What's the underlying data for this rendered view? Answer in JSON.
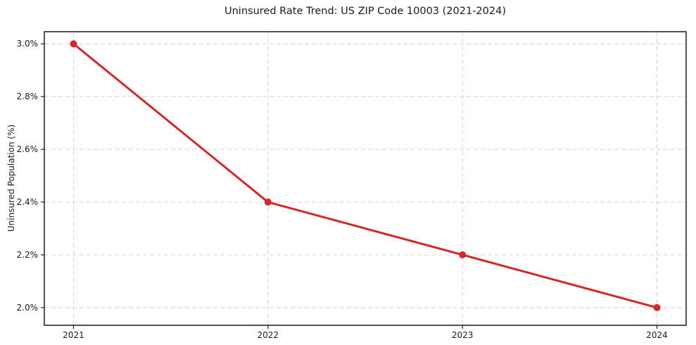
{
  "chart_data": {
    "type": "line",
    "title": "Uninsured Rate Trend: US ZIP Code 10003 (2021-2024)",
    "xlabel": "",
    "ylabel": "Uninsured Population (%)",
    "x": [
      2021,
      2022,
      2023,
      2024
    ],
    "x_tick_labels": [
      "2021",
      "2022",
      "2023",
      "2024"
    ],
    "series": [
      {
        "values": [
          3.0,
          2.4,
          2.2,
          2.0
        ],
        "color": "#d62728",
        "marker": "circle",
        "line_width": 3,
        "marker_radius": 5
      }
    ],
    "y_ticks": [
      {
        "value": 2.0,
        "label": "2.0%"
      },
      {
        "value": 2.2,
        "label": "2.2%"
      },
      {
        "value": 2.4,
        "label": "2.4%"
      },
      {
        "value": 2.6,
        "label": "2.6%"
      },
      {
        "value": 2.8,
        "label": "2.8%"
      },
      {
        "value": 3.0,
        "label": "3.0%"
      }
    ],
    "xlim": [
      2020.85,
      2024.15
    ],
    "ylim": [
      1.933,
      3.046
    ],
    "grid": true,
    "grid_style": "dashed",
    "grid_color": "#d3d3d3",
    "axis_color": "#1a1a1a",
    "text_color": "#1a1a1a",
    "background_color": "#ffffff",
    "legend": "none"
  }
}
